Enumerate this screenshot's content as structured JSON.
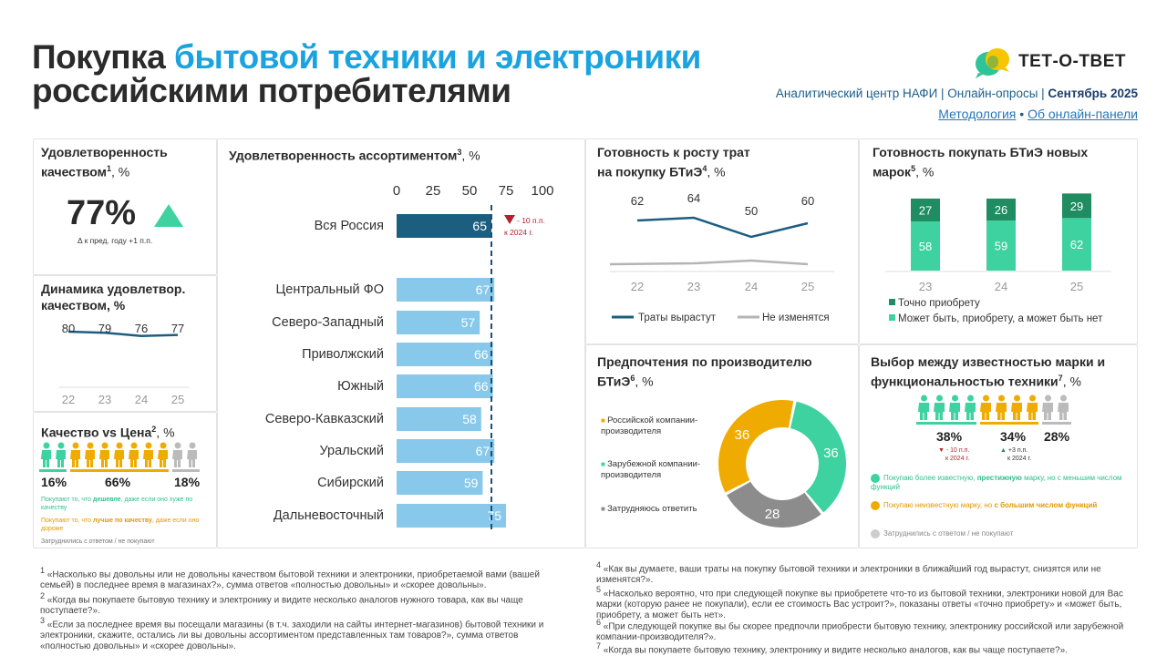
{
  "header": {
    "title_part1": "Покупка ",
    "title_highlight": "бытовой техники и электроники",
    "title_line2": "российскими потребителями",
    "brand": "ТЕТ-О-ТВЕТ",
    "source": "Аналитический центр НАФИ | Онлайн-опросы | ",
    "date": "Сентябрь 2025",
    "link_method": "Методология",
    "link_sep": " • ",
    "link_panel": "Об онлайн-панели"
  },
  "p1": {
    "title_a": "Удовлетворенность",
    "title_b": "качеством",
    "sup": "1",
    "unit": ", %",
    "value": "77%",
    "delta_label": "Δ к пред. году  +1 п.п."
  },
  "p2": {
    "title_a": "Динамика удовлетвор.",
    "title_b": "качеством, %"
  },
  "p3": {
    "title": "Качество vs Цена",
    "sup": "2",
    "unit": ", %",
    "v1": "16%",
    "v2": "66%",
    "v3": "18%",
    "note1_a": "Покупают то, что ",
    "note1_b": "дешевле",
    "note1_c": ", даже если оно хуже по качеству",
    "note2_a": "Покупают то, что ",
    "note2_b": "лучше по качеству",
    "note2_c": ", даже если оно дороже",
    "note3": "Затруднились с ответом / не покупают"
  },
  "p4": {
    "title": "Удовлетворенность ассортиментом",
    "sup": "3",
    "unit": ", %",
    "delta_a": "- 10 п.п.",
    "delta_b": "к 2024 г."
  },
  "p5": {
    "title_a": "Готовность к росту трат",
    "title_b": "на покупку БТиЭ",
    "sup": "4",
    "unit": ", %"
  },
  "p6": {
    "title_a": "Готовность покупать БТиЭ новых",
    "title_b": "марок",
    "sup": "5",
    "unit": ", %"
  },
  "p7": {
    "title_a": "Предпочтения по производителю",
    "title_b": "БТиЭ",
    "sup": "6",
    "unit": ", %",
    "legend1": "Российской компании-производителя",
    "legend2": "Зарубежной компании-производителя",
    "legend3": "Затрудняюсь ответить"
  },
  "p8": {
    "title_a": "Выбор между известностью марки и",
    "title_b": "функциональностью техники",
    "sup": "7",
    "unit": ", %",
    "v1": "38%",
    "v2": "34%",
    "v3": "28%",
    "d1a": "- 10 п.п.",
    "d1b": "к 2024 г.",
    "d2a": "+3 п.п.",
    "d2b": "к 2024 г.",
    "l1_a": "Покупаю более известную, ",
    "l1_b": "престижную",
    "l1_c": " марку, но с меньшим числом функций",
    "l2_a": "Покупаю неизвестную марку, но ",
    "l2_b": "с большим числом функций",
    "l3": "Затруднились с ответом / не покупают"
  },
  "footnotes": {
    "f1": "«Насколько вы довольны или не довольны качеством бытовой техники и электроники, приобретаемой вами (вашей семьей) в последнее время в магазинах?», сумма ответов «полностью довольны» и «скорее довольны».",
    "f2": "«Когда вы покупаете бытовую технику и электронику и видите несколько аналогов нужного товара, как вы чаще поступаете?».",
    "f3": "«Если за последнее время вы посещали магазины (в т.ч. заходили на сайты интернет-магазинов) бытовой техники и электроники, скажите, остались ли вы довольны ассортиментом представленных там товаров?», сумма ответов «полностью довольны» и «скорее довольны».",
    "f4": "«Как вы думаете, ваши траты на покупку бытовой техники и электроники в ближайший год вырастут, снизятся или не изменятся?».",
    "f5": "«Насколько вероятно, что при следующей покупке вы приобретете что-то из бытовой техники, электроники новой для Вас марки (которую ранее не покупали), если ее стоимость Вас устроит?», показаны ответы «точно приобрету» и «может быть, приобрету, а может быть нет».",
    "f6": "«При следующей покупке вы бы скорее предпочли приобрести бытовую технику, электронику российской или зарубежной компании-производителя?».",
    "f7": "«Когда вы покупаете бытовую технику, электронику и видите несколько аналогов, как вы чаще поступаете?»."
  },
  "colors": {
    "dark_blue": "#1b5e80",
    "light_blue": "#87c8eb",
    "teal_dark": "#1f8c62",
    "teal": "#3dd2a0",
    "orange": "#f0ab00",
    "gray": "#aaaaaa",
    "highlight": "#1ba3e0"
  },
  "chart_data": [
    {
      "type": "line",
      "title": "Динамика удовлетвор. качеством, %",
      "categories": [
        "22",
        "23",
        "24",
        "25"
      ],
      "values": [
        80,
        79,
        76,
        77
      ],
      "ylim": [
        60,
        90
      ]
    },
    {
      "type": "bar",
      "orientation": "horizontal",
      "title": "Удовлетворенность ассортиментом, %",
      "categories": [
        "Вся Россия",
        "Центральный ФО",
        "Северо-Западный",
        "Приволжский",
        "Южный",
        "Северо-Кавказский",
        "Уральский",
        "Сибирский",
        "Дальневосточный"
      ],
      "values": [
        65,
        67,
        57,
        66,
        66,
        58,
        67,
        59,
        75
      ],
      "xticks": [
        "0",
        "25",
        "50",
        "75",
        "100"
      ],
      "xlim": [
        0,
        100
      ],
      "reference_line": 65
    },
    {
      "type": "line",
      "title": "Готовность к росту трат на покупку БТиЭ, %",
      "categories": [
        "22",
        "23",
        "24",
        "25"
      ],
      "series": [
        {
          "name": "Траты вырастут",
          "values": [
            62,
            64,
            50,
            60
          ],
          "color": "#1b5e80"
        },
        {
          "name": "Не изменятся",
          "values": [
            null,
            null,
            null,
            null
          ],
          "color": "#aaaaaa"
        }
      ],
      "legend": "bottom"
    },
    {
      "type": "bar",
      "stacked": true,
      "title": "Готовность покупать БТиЭ новых марок, %",
      "categories": [
        "23",
        "24",
        "25"
      ],
      "series": [
        {
          "name": "Может быть, приобрету, а может быть нет",
          "values": [
            58,
            59,
            62
          ],
          "color": "#3dd2a0"
        },
        {
          "name": "Точно приобрету",
          "values": [
            27,
            26,
            29
          ],
          "color": "#1f8c62"
        }
      ],
      "legend": "bottom"
    },
    {
      "type": "pie",
      "donut": true,
      "title": "Предпочтения по производителю БТиЭ, %",
      "labels": [
        "Зарубежной компании-производителя",
        "Затрудняюсь ответить",
        "Российской компании-производителя"
      ],
      "values": [
        36,
        28,
        36
      ],
      "colors": [
        "#3dd2a0",
        "#8c8c8c",
        "#f0ab00"
      ]
    }
  ]
}
